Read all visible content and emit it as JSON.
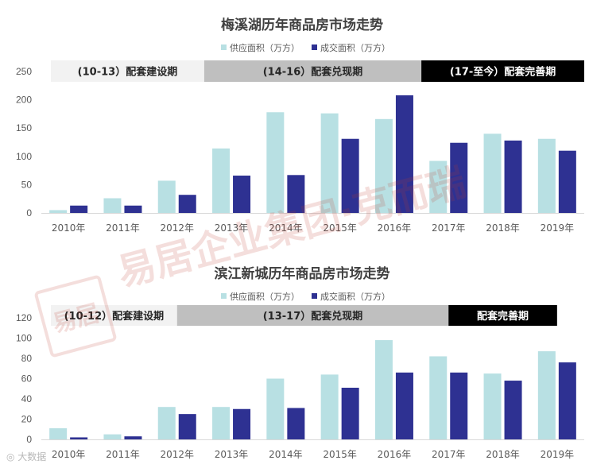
{
  "watermark": {
    "logo_text": "易居",
    "text": "易居企业集团·克而瑞"
  },
  "footer_watermark": "大数据",
  "colors": {
    "supply": "#b8e0e3",
    "deal": "#2e3192"
  },
  "chart_data": [
    {
      "type": "bar",
      "title": "梅溪湖历年商品房市场走势",
      "categories": [
        "2010年",
        "2011年",
        "2012年",
        "2013年",
        "2014年",
        "2015年",
        "2016年",
        "2017年",
        "2018年",
        "2019年"
      ],
      "series": [
        {
          "name": "供应面积（万方）",
          "color": "#b8e0e3",
          "values": [
            5,
            26,
            57,
            114,
            178,
            176,
            166,
            92,
            140,
            131
          ]
        },
        {
          "name": "成交面积（万方）",
          "color": "#2e3192",
          "values": [
            13,
            13,
            32,
            66,
            67,
            131,
            208,
            124,
            128,
            110
          ]
        }
      ],
      "ylim": [
        0,
        250
      ],
      "yticks": [
        "0",
        "50",
        "100",
        "150",
        "200",
        "250"
      ],
      "legend_position": "top",
      "phases": [
        {
          "label": "(10-13）配套建设期",
          "start_index": 0,
          "end_index": 3,
          "fill": "#f2f2f2",
          "text_color": "#262626"
        },
        {
          "label": "(14-16）配套兑现期",
          "start_index": 3,
          "end_index": 7,
          "fill": "#bfbfbf",
          "text_color": "#262626"
        },
        {
          "label": "(17-至今）配套完善期",
          "start_index": 7,
          "end_index": 10,
          "fill": "#000000",
          "text_color": "#ffffff"
        }
      ]
    },
    {
      "type": "bar",
      "title": "滨江新城历年商品房市场走势",
      "categories": [
        "2010年",
        "2011年",
        "2012年",
        "2013年",
        "2014年",
        "2015年",
        "2016年",
        "2017年",
        "2018年",
        "2019年"
      ],
      "series": [
        {
          "name": "供应面积（万方）",
          "color": "#b8e0e3",
          "values": [
            11,
            5,
            32,
            32,
            60,
            64,
            98,
            82,
            65,
            87
          ]
        },
        {
          "name": "成交面积（万方）",
          "color": "#2e3192",
          "values": [
            2,
            3,
            25,
            30,
            31,
            51,
            66,
            66,
            58,
            76
          ]
        }
      ],
      "ylim": [
        0,
        120
      ],
      "yticks": [
        "0",
        "20",
        "40",
        "60",
        "80",
        "100",
        "120"
      ],
      "legend_position": "top",
      "phases": [
        {
          "label": "(10-12）配套建设期",
          "start_index": 0,
          "end_index": 2.5,
          "fill": "#f2f2f2",
          "text_color": "#262626"
        },
        {
          "label": "(13-17）配套兑现期",
          "start_index": 2.5,
          "end_index": 7.5,
          "fill": "#bfbfbf",
          "text_color": "#262626"
        },
        {
          "label": "配套完善期",
          "start_index": 7.5,
          "end_index": 9.5,
          "fill": "#000000",
          "text_color": "#ffffff"
        }
      ]
    }
  ]
}
